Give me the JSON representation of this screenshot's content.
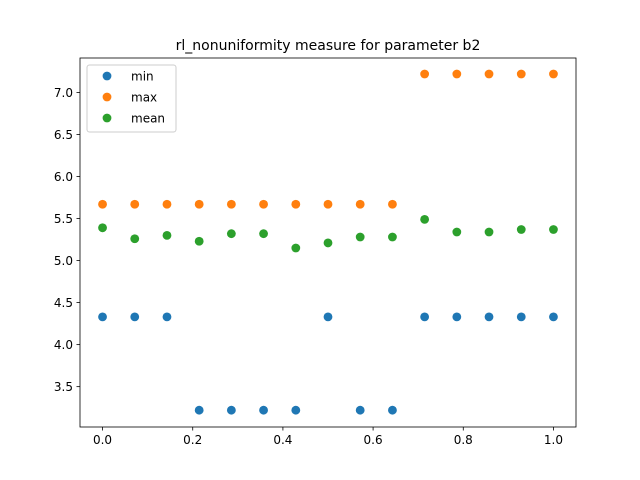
{
  "chart_data": {
    "type": "scatter",
    "title": "rl_nonuniformity measure for parameter b2",
    "xlabel": "",
    "ylabel": "",
    "xlim": [
      -0.05,
      1.05
    ],
    "ylim": [
      3.02,
      7.41
    ],
    "x_ticks": [
      "0.0",
      "0.2",
      "0.4",
      "0.6",
      "0.8",
      "1.0"
    ],
    "y_ticks": [
      "3.5",
      "4.0",
      "4.5",
      "5.0",
      "5.5",
      "6.0",
      "6.5",
      "7.0"
    ],
    "legend_position": "upper-left",
    "x": [
      0.0,
      0.0714,
      0.1429,
      0.2143,
      0.2857,
      0.3571,
      0.4286,
      0.5,
      0.5714,
      0.6429,
      0.7143,
      0.7857,
      0.8571,
      0.9286,
      1.0
    ],
    "series": [
      {
        "name": "min",
        "color": "#1f77b4",
        "values": [
          4.33,
          4.33,
          4.33,
          3.22,
          3.22,
          3.22,
          3.22,
          4.33,
          3.22,
          3.22,
          4.33,
          4.33,
          4.33,
          4.33,
          4.33
        ]
      },
      {
        "name": "max",
        "color": "#ff7f0e",
        "values": [
          5.67,
          5.67,
          5.67,
          5.67,
          5.67,
          5.67,
          5.67,
          5.67,
          5.67,
          5.67,
          7.22,
          7.22,
          7.22,
          7.22,
          7.22
        ]
      },
      {
        "name": "mean",
        "color": "#2ca02c",
        "values": [
          5.39,
          5.26,
          5.3,
          5.23,
          5.32,
          5.32,
          5.15,
          5.21,
          5.28,
          5.28,
          5.49,
          5.34,
          5.34,
          5.37,
          5.37
        ]
      }
    ]
  }
}
